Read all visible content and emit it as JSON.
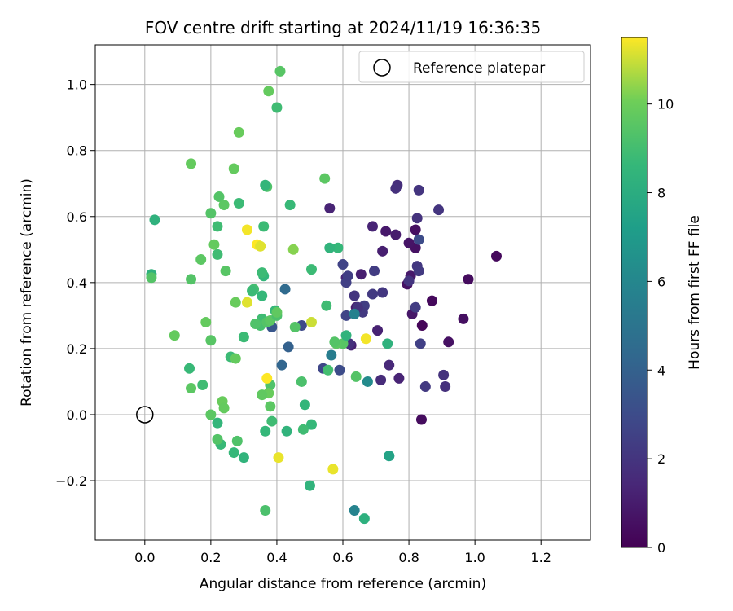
{
  "chart_data": {
    "type": "scatter",
    "title": "FOV centre drift starting at 2024/11/19 16:36:35",
    "xlabel": "Angular distance from reference (arcmin)",
    "ylabel": "Rotation from reference (arcmin)",
    "xlim": [
      -0.15,
      1.35
    ],
    "ylim": [
      -0.38,
      1.12
    ],
    "xticks": [
      "0.0",
      "0.2",
      "0.4",
      "0.6",
      "0.8",
      "1.0",
      "1.2"
    ],
    "xtick_values": [
      0,
      0.2,
      0.4,
      0.6,
      0.8,
      1.0,
      1.2
    ],
    "yticks": [
      "−0.2",
      "0.0",
      "0.2",
      "0.4",
      "0.6",
      "0.8",
      "1.0"
    ],
    "ytick_values": [
      -0.2,
      0,
      0.2,
      0.4,
      0.6,
      0.8,
      1.0
    ],
    "grid": true,
    "legend": {
      "position": "top-right",
      "entries": [
        "Reference platepar"
      ]
    },
    "reference_point": {
      "x": 0.0,
      "y": 0.0
    },
    "colorbar": {
      "label": "Hours from first FF file",
      "min": 0,
      "max": 11.5,
      "ticks": [
        "0",
        "2",
        "4",
        "6",
        "8",
        "10"
      ],
      "tick_values": [
        0,
        2,
        4,
        6,
        8,
        10
      ],
      "colormap": "viridis"
    },
    "points": [
      {
        "x": 1.065,
        "y": 0.48,
        "h": 0.3
      },
      {
        "x": 0.98,
        "y": 0.41,
        "h": 0.4
      },
      {
        "x": 0.965,
        "y": 0.29,
        "h": 0.5
      },
      {
        "x": 0.92,
        "y": 0.22,
        "h": 0.6
      },
      {
        "x": 0.87,
        "y": 0.345,
        "h": 0.3
      },
      {
        "x": 0.84,
        "y": 0.27,
        "h": 0.2
      },
      {
        "x": 0.838,
        "y": -0.015,
        "h": 0.4
      },
      {
        "x": 0.82,
        "y": 0.56,
        "h": 0.5
      },
      {
        "x": 0.82,
        "y": 0.505,
        "h": 0.6
      },
      {
        "x": 0.81,
        "y": 0.305,
        "h": 0.8
      },
      {
        "x": 0.805,
        "y": 0.42,
        "h": 0.9
      },
      {
        "x": 0.8,
        "y": 0.52,
        "h": 0.7
      },
      {
        "x": 0.795,
        "y": 0.395,
        "h": 0.6
      },
      {
        "x": 0.76,
        "y": 0.545,
        "h": 1.0
      },
      {
        "x": 0.73,
        "y": 0.555,
        "h": 0.9
      },
      {
        "x": 0.72,
        "y": 0.495,
        "h": 1.1
      },
      {
        "x": 0.705,
        "y": 0.255,
        "h": 1.2
      },
      {
        "x": 0.69,
        "y": 0.57,
        "h": 1.3
      },
      {
        "x": 0.655,
        "y": 0.425,
        "h": 1.1
      },
      {
        "x": 0.64,
        "y": 0.325,
        "h": 1.0
      },
      {
        "x": 0.625,
        "y": 0.21,
        "h": 1.2
      },
      {
        "x": 0.61,
        "y": 0.415,
        "h": 1.4
      },
      {
        "x": 0.56,
        "y": 0.625,
        "h": 1.3
      },
      {
        "x": 0.74,
        "y": 0.15,
        "h": 1.5
      },
      {
        "x": 0.77,
        "y": 0.11,
        "h": 1.3
      },
      {
        "x": 0.715,
        "y": 0.105,
        "h": 1.6
      },
      {
        "x": 0.765,
        "y": 0.695,
        "h": 1.7
      },
      {
        "x": 0.76,
        "y": 0.685,
        "h": 1.8
      },
      {
        "x": 0.83,
        "y": 0.68,
        "h": 2.0
      },
      {
        "x": 0.89,
        "y": 0.62,
        "h": 2.0
      },
      {
        "x": 0.825,
        "y": 0.595,
        "h": 1.9
      },
      {
        "x": 0.825,
        "y": 0.45,
        "h": 2.1
      },
      {
        "x": 0.83,
        "y": 0.435,
        "h": 2.2
      },
      {
        "x": 0.8,
        "y": 0.405,
        "h": 2.0
      },
      {
        "x": 0.72,
        "y": 0.37,
        "h": 2.1
      },
      {
        "x": 0.695,
        "y": 0.435,
        "h": 2.3
      },
      {
        "x": 0.69,
        "y": 0.365,
        "h": 2.2
      },
      {
        "x": 0.665,
        "y": 0.33,
        "h": 2.4
      },
      {
        "x": 0.66,
        "y": 0.31,
        "h": 2.2
      },
      {
        "x": 0.635,
        "y": 0.36,
        "h": 2.0
      },
      {
        "x": 0.645,
        "y": 0.325,
        "h": 1.9
      },
      {
        "x": 0.62,
        "y": 0.215,
        "h": 1.8
      },
      {
        "x": 0.61,
        "y": 0.4,
        "h": 2.5
      },
      {
        "x": 0.615,
        "y": 0.42,
        "h": 2.4
      },
      {
        "x": 0.6,
        "y": 0.455,
        "h": 2.6
      },
      {
        "x": 0.61,
        "y": 0.3,
        "h": 2.7
      },
      {
        "x": 0.82,
        "y": 0.325,
        "h": 2.3
      },
      {
        "x": 0.835,
        "y": 0.215,
        "h": 2.5
      },
      {
        "x": 0.85,
        "y": 0.085,
        "h": 2.2
      },
      {
        "x": 0.905,
        "y": 0.12,
        "h": 1.9
      },
      {
        "x": 0.91,
        "y": 0.085,
        "h": 1.8
      },
      {
        "x": 0.83,
        "y": 0.53,
        "h": 3.0
      },
      {
        "x": 0.59,
        "y": 0.135,
        "h": 3.0
      },
      {
        "x": 0.54,
        "y": 0.14,
        "h": 2.8
      },
      {
        "x": 0.475,
        "y": 0.27,
        "h": 2.9
      },
      {
        "x": 0.385,
        "y": 0.265,
        "h": 3.5
      },
      {
        "x": 0.435,
        "y": 0.205,
        "h": 4.0
      },
      {
        "x": 0.415,
        "y": 0.15,
        "h": 4.2
      },
      {
        "x": 0.425,
        "y": 0.38,
        "h": 4.5
      },
      {
        "x": 0.565,
        "y": 0.18,
        "h": 5.5
      },
      {
        "x": 0.635,
        "y": 0.305,
        "h": 5.7
      },
      {
        "x": 0.675,
        "y": 0.1,
        "h": 6.2
      },
      {
        "x": 0.635,
        "y": -0.29,
        "h": 5.8
      },
      {
        "x": 0.74,
        "y": -0.125,
        "h": 7.2
      },
      {
        "x": 0.74,
        "y": -0.125,
        "h": 7.5
      },
      {
        "x": 0.735,
        "y": 0.215,
        "h": 8.3
      },
      {
        "x": 0.665,
        "y": -0.315,
        "h": 8.2
      },
      {
        "x": 0.6,
        "y": 0.215,
        "h": 9.5
      },
      {
        "x": 0.61,
        "y": 0.24,
        "h": 8.4
      },
      {
        "x": 0.58,
        "y": 0.215,
        "h": 9.6
      },
      {
        "x": 0.575,
        "y": 0.22,
        "h": 9.4
      },
      {
        "x": 0.585,
        "y": 0.505,
        "h": 8.6
      },
      {
        "x": 0.56,
        "y": 0.505,
        "h": 8.4
      },
      {
        "x": 0.55,
        "y": 0.33,
        "h": 8.9
      },
      {
        "x": 0.545,
        "y": 0.715,
        "h": 9.6
      },
      {
        "x": 0.555,
        "y": 0.135,
        "h": 9.0
      },
      {
        "x": 0.64,
        "y": 0.115,
        "h": 9.4
      },
      {
        "x": 0.505,
        "y": 0.44,
        "h": 8.8
      },
      {
        "x": 0.505,
        "y": -0.03,
        "h": 8.6
      },
      {
        "x": 0.5,
        "y": -0.215,
        "h": 8.4
      },
      {
        "x": 0.485,
        "y": 0.03,
        "h": 8.5
      },
      {
        "x": 0.48,
        "y": -0.045,
        "h": 8.9
      },
      {
        "x": 0.475,
        "y": 0.1,
        "h": 9.2
      },
      {
        "x": 0.455,
        "y": 0.265,
        "h": 9.4
      },
      {
        "x": 0.45,
        "y": 0.5,
        "h": 10.3
      },
      {
        "x": 0.44,
        "y": 0.635,
        "h": 8.7
      },
      {
        "x": 0.43,
        "y": -0.05,
        "h": 8.4
      },
      {
        "x": 0.41,
        "y": 1.04,
        "h": 9.5
      },
      {
        "x": 0.4,
        "y": 0.93,
        "h": 8.9
      },
      {
        "x": 0.375,
        "y": 0.98,
        "h": 9.8
      },
      {
        "x": 0.37,
        "y": 0.69,
        "h": 9.3
      },
      {
        "x": 0.365,
        "y": 0.695,
        "h": 8.5
      },
      {
        "x": 0.36,
        "y": 0.57,
        "h": 8.8
      },
      {
        "x": 0.36,
        "y": 0.42,
        "h": 8.5
      },
      {
        "x": 0.355,
        "y": 0.43,
        "h": 8.8
      },
      {
        "x": 0.355,
        "y": 0.36,
        "h": 8.6
      },
      {
        "x": 0.355,
        "y": 0.29,
        "h": 8.9
      },
      {
        "x": 0.35,
        "y": 0.27,
        "h": 9.1
      },
      {
        "x": 0.37,
        "y": 0.28,
        "h": 9.4
      },
      {
        "x": 0.38,
        "y": 0.285,
        "h": 9.6
      },
      {
        "x": 0.395,
        "y": 0.315,
        "h": 8.6
      },
      {
        "x": 0.4,
        "y": 0.3,
        "h": 9.2
      },
      {
        "x": 0.4,
        "y": 0.31,
        "h": 9.7
      },
      {
        "x": 0.335,
        "y": 0.275,
        "h": 9.3
      },
      {
        "x": 0.33,
        "y": 0.38,
        "h": 9.0
      },
      {
        "x": 0.325,
        "y": 0.375,
        "h": 8.8
      },
      {
        "x": 0.3,
        "y": 0.235,
        "h": 8.8
      },
      {
        "x": 0.38,
        "y": 0.09,
        "h": 9.3
      },
      {
        "x": 0.38,
        "y": 0.025,
        "h": 9.6
      },
      {
        "x": 0.375,
        "y": 0.065,
        "h": 9.9
      },
      {
        "x": 0.355,
        "y": 0.06,
        "h": 9.7
      },
      {
        "x": 0.385,
        "y": -0.02,
        "h": 8.9
      },
      {
        "x": 0.365,
        "y": -0.05,
        "h": 8.6
      },
      {
        "x": 0.365,
        "y": -0.29,
        "h": 9.2
      },
      {
        "x": 0.3,
        "y": -0.13,
        "h": 8.4
      },
      {
        "x": 0.28,
        "y": -0.08,
        "h": 9.3
      },
      {
        "x": 0.27,
        "y": -0.115,
        "h": 8.6
      },
      {
        "x": 0.23,
        "y": -0.09,
        "h": 8.7
      },
      {
        "x": 0.22,
        "y": -0.075,
        "h": 9.4
      },
      {
        "x": 0.22,
        "y": -0.025,
        "h": 8.5
      },
      {
        "x": 0.2,
        "y": 0.0,
        "h": 9.6
      },
      {
        "x": 0.235,
        "y": 0.04,
        "h": 9.9
      },
      {
        "x": 0.24,
        "y": 0.02,
        "h": 9.8
      },
      {
        "x": 0.175,
        "y": 0.09,
        "h": 8.9
      },
      {
        "x": 0.14,
        "y": 0.08,
        "h": 9.6
      },
      {
        "x": 0.135,
        "y": 0.14,
        "h": 8.7
      },
      {
        "x": 0.2,
        "y": 0.225,
        "h": 9.5
      },
      {
        "x": 0.185,
        "y": 0.28,
        "h": 9.8
      },
      {
        "x": 0.26,
        "y": 0.175,
        "h": 8.8
      },
      {
        "x": 0.275,
        "y": 0.17,
        "h": 9.8
      },
      {
        "x": 0.275,
        "y": 0.34,
        "h": 9.9
      },
      {
        "x": 0.245,
        "y": 0.435,
        "h": 9.5
      },
      {
        "x": 0.22,
        "y": 0.485,
        "h": 8.9
      },
      {
        "x": 0.21,
        "y": 0.515,
        "h": 9.8
      },
      {
        "x": 0.22,
        "y": 0.57,
        "h": 8.9
      },
      {
        "x": 0.2,
        "y": 0.61,
        "h": 9.4
      },
      {
        "x": 0.225,
        "y": 0.66,
        "h": 9.4
      },
      {
        "x": 0.24,
        "y": 0.635,
        "h": 9.6
      },
      {
        "x": 0.285,
        "y": 0.64,
        "h": 8.8
      },
      {
        "x": 0.27,
        "y": 0.745,
        "h": 9.8
      },
      {
        "x": 0.285,
        "y": 0.855,
        "h": 9.9
      },
      {
        "x": 0.14,
        "y": 0.76,
        "h": 9.8
      },
      {
        "x": 0.17,
        "y": 0.47,
        "h": 9.6
      },
      {
        "x": 0.14,
        "y": 0.41,
        "h": 9.4
      },
      {
        "x": 0.09,
        "y": 0.24,
        "h": 9.8
      },
      {
        "x": 0.02,
        "y": 0.425,
        "h": 8.3
      },
      {
        "x": 0.02,
        "y": 0.415,
        "h": 9.4
      },
      {
        "x": 0.03,
        "y": 0.59,
        "h": 8.3
      },
      {
        "x": 0.31,
        "y": 0.56,
        "h": 11.4
      },
      {
        "x": 0.31,
        "y": 0.34,
        "h": 11.2
      },
      {
        "x": 0.34,
        "y": 0.515,
        "h": 11.5
      },
      {
        "x": 0.35,
        "y": 0.51,
        "h": 11.2
      },
      {
        "x": 0.37,
        "y": 0.11,
        "h": 11.5
      },
      {
        "x": 0.405,
        "y": -0.13,
        "h": 11.3
      },
      {
        "x": 0.505,
        "y": 0.28,
        "h": 11.0
      },
      {
        "x": 0.57,
        "y": -0.165,
        "h": 11.3
      },
      {
        "x": 0.67,
        "y": 0.23,
        "h": 11.4
      }
    ]
  }
}
